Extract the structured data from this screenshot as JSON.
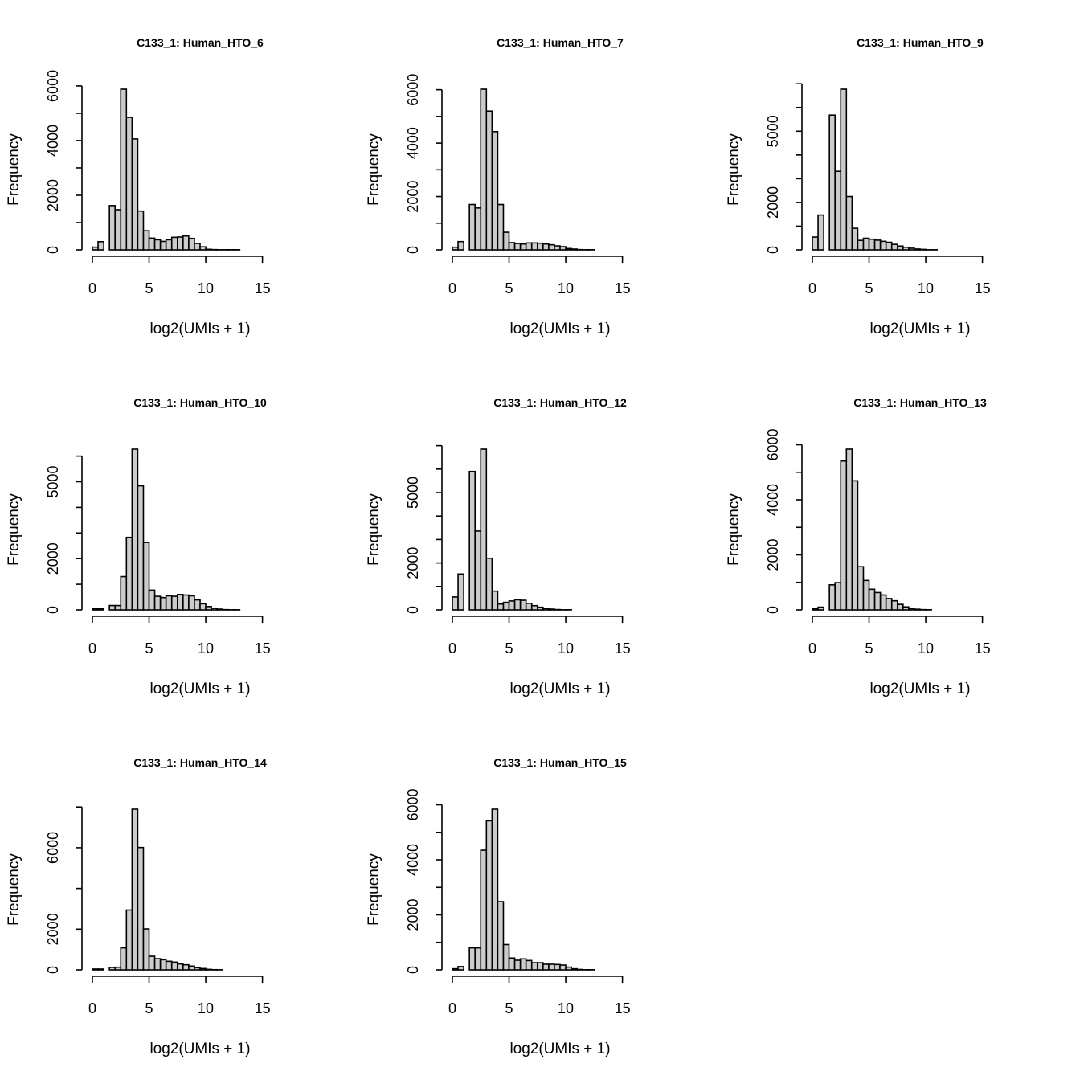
{
  "chart_data": [
    {
      "type": "bar",
      "title": "C133_1: Human_HTO_6",
      "xlabel": "log2(UMIs + 1)",
      "ylabel": "Frequency",
      "bin_width": 0.5,
      "xlim": [
        0,
        19
      ],
      "x_ticks": [
        0,
        5,
        10,
        15
      ],
      "y_ticks": [
        0,
        1000,
        2000,
        3000,
        4000,
        5000,
        6000
      ],
      "y_tick_labels": [
        "0",
        "2000",
        "4000",
        "6000"
      ],
      "values": [
        100,
        300,
        0,
        1620,
        1470,
        5880,
        4850,
        4060,
        1420,
        700,
        430,
        370,
        310,
        370,
        460,
        470,
        510,
        420,
        235,
        110,
        20,
        10,
        5,
        5,
        5,
        5,
        0,
        0,
        0,
        0,
        0,
        0,
        0,
        0,
        0,
        0,
        0,
        0
      ]
    },
    {
      "type": "bar",
      "title": "C133_1: Human_HTO_7",
      "xlabel": "log2(UMIs + 1)",
      "ylabel": "Frequency",
      "bin_width": 0.5,
      "xlim": [
        0,
        19
      ],
      "x_ticks": [
        0,
        5,
        10,
        15
      ],
      "y_ticks": [
        0,
        1000,
        2000,
        3000,
        4000,
        5000,
        6000
      ],
      "y_tick_labels": [
        "0",
        "2000",
        "4000",
        "6000"
      ],
      "values": [
        100,
        310,
        0,
        1700,
        1570,
        6020,
        5200,
        4430,
        1700,
        660,
        270,
        240,
        220,
        260,
        260,
        250,
        220,
        190,
        150,
        120,
        50,
        30,
        10,
        5,
        5,
        0,
        0,
        0,
        0,
        0,
        0,
        0,
        0,
        0,
        0,
        0,
        0,
        0
      ]
    },
    {
      "type": "bar",
      "title": "C133_1: Human_HTO_9",
      "xlabel": "log2(UMIs + 1)",
      "ylabel": "Frequency",
      "bin_width": 0.5,
      "xlim": [
        0,
        19
      ],
      "x_ticks": [
        0,
        5,
        10,
        15
      ],
      "y_ticks": [
        0,
        1000,
        2000,
        3000,
        4000,
        5000,
        6000,
        7000
      ],
      "y_tick_labels": [
        "0",
        "2000",
        "5000"
      ],
      "values": [
        540,
        1470,
        0,
        5680,
        3310,
        6770,
        2250,
        910,
        400,
        490,
        450,
        410,
        360,
        320,
        230,
        160,
        110,
        70,
        35,
        20,
        5,
        5,
        0,
        0,
        0,
        0,
        0,
        0,
        0,
        0,
        0,
        0,
        0,
        0,
        0,
        0,
        0,
        0
      ]
    },
    {
      "type": "bar",
      "title": "C133_1: Human_HTO_10",
      "xlabel": "log2(UMIs + 1)",
      "ylabel": "Frequency",
      "bin_width": 0.5,
      "xlim": [
        0,
        19
      ],
      "x_ticks": [
        0,
        5,
        10,
        15
      ],
      "y_ticks": [
        0,
        1000,
        2000,
        3000,
        4000,
        5000,
        6000
      ],
      "y_tick_labels": [
        "0",
        "2000",
        "5000"
      ],
      "values": [
        40,
        40,
        0,
        170,
        170,
        1300,
        2830,
        6270,
        4840,
        2630,
        770,
        530,
        480,
        550,
        530,
        600,
        580,
        550,
        390,
        240,
        130,
        60,
        30,
        10,
        5,
        5,
        0,
        0,
        0,
        0,
        0,
        0,
        0,
        0,
        0,
        0,
        0,
        0
      ]
    },
    {
      "type": "bar",
      "title": "C133_1: Human_HTO_12",
      "xlabel": "log2(UMIs + 1)",
      "ylabel": "Frequency",
      "bin_width": 0.5,
      "xlim": [
        0,
        19
      ],
      "x_ticks": [
        0,
        5,
        10,
        15
      ],
      "y_ticks": [
        0,
        1000,
        2000,
        3000,
        4000,
        5000,
        6000,
        7000
      ],
      "y_tick_labels": [
        "0",
        "2000",
        "5000"
      ],
      "values": [
        550,
        1530,
        0,
        5900,
        3360,
        6850,
        2200,
        800,
        250,
        320,
        380,
        430,
        410,
        280,
        180,
        115,
        60,
        35,
        15,
        5,
        5,
        0,
        0,
        0,
        0,
        0,
        0,
        0,
        0,
        0,
        0,
        0,
        0,
        0,
        0,
        0,
        0,
        0
      ]
    },
    {
      "type": "bar",
      "title": "C133_1: Human_HTO_13",
      "xlabel": "log2(UMIs + 1)",
      "ylabel": "Frequency",
      "bin_width": 0.5,
      "xlim": [
        0,
        19
      ],
      "x_ticks": [
        0,
        5,
        10,
        15
      ],
      "y_ticks": [
        0,
        1000,
        2000,
        3000,
        4000,
        5000,
        6000
      ],
      "y_tick_labels": [
        "0",
        "2000",
        "4000",
        "6000"
      ],
      "values": [
        40,
        100,
        0,
        910,
        990,
        5410,
        5840,
        4690,
        1570,
        1070,
        750,
        630,
        540,
        410,
        330,
        200,
        110,
        50,
        25,
        10,
        5,
        0,
        0,
        0,
        0,
        0,
        0,
        0,
        0,
        0,
        0,
        0,
        0,
        0,
        0,
        0,
        0,
        0
      ]
    },
    {
      "type": "bar",
      "title": "C133_1: Human_HTO_14",
      "xlabel": "log2(UMIs + 1)",
      "ylabel": "Frequency",
      "bin_width": 0.5,
      "xlim": [
        0,
        19
      ],
      "x_ticks": [
        0,
        5,
        10,
        15
      ],
      "y_ticks": [
        0,
        2000,
        4000,
        6000,
        8000
      ],
      "y_tick_labels": [
        "0",
        "2000",
        "6000"
      ],
      "values": [
        40,
        40,
        0,
        120,
        130,
        1080,
        2940,
        7890,
        6010,
        2010,
        670,
        550,
        500,
        420,
        380,
        290,
        250,
        185,
        105,
        65,
        25,
        10,
        5,
        0,
        0,
        0,
        0,
        0,
        0,
        0,
        0,
        0,
        0,
        0,
        0,
        0,
        0,
        0
      ]
    },
    {
      "type": "bar",
      "title": "C133_1: Human_HTO_15",
      "xlabel": "log2(UMIs + 1)",
      "ylabel": "Frequency",
      "bin_width": 0.5,
      "xlim": [
        0,
        19
      ],
      "x_ticks": [
        0,
        5,
        10,
        15
      ],
      "y_ticks": [
        0,
        1000,
        2000,
        3000,
        4000,
        5000,
        6000
      ],
      "y_tick_labels": [
        "0",
        "2000",
        "4000",
        "6000"
      ],
      "values": [
        40,
        120,
        0,
        800,
        800,
        4350,
        5420,
        5840,
        2480,
        920,
        430,
        350,
        400,
        340,
        260,
        260,
        205,
        205,
        195,
        175,
        100,
        40,
        15,
        5,
        5,
        0,
        0,
        0,
        0,
        0,
        0,
        0,
        0,
        0,
        0,
        0,
        0,
        0
      ]
    }
  ],
  "style": {
    "bar_fill": "#cccccc",
    "bar_stroke": "#000000"
  }
}
